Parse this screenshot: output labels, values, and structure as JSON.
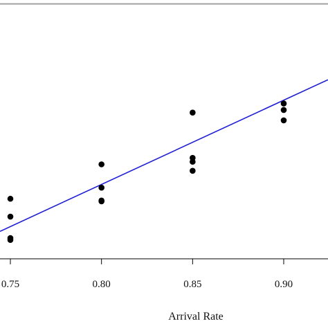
{
  "chart_data": {
    "type": "scatter",
    "title": "",
    "xlabel": "Arrival Rate",
    "ylabel": "",
    "xlim": [
      0.7443,
      0.9243
    ],
    "ylim": [
      0.0,
      1.0
    ],
    "xticks": [
      {
        "value": 0.75,
        "label": "0.75"
      },
      {
        "value": 0.8,
        "label": "0.80"
      },
      {
        "value": 0.85,
        "label": "0.85"
      },
      {
        "value": 0.9,
        "label": "0.90"
      }
    ],
    "grid": false,
    "points": {
      "x": [
        0.75,
        0.75,
        0.75,
        0.75,
        0.8,
        0.8,
        0.8,
        0.8,
        0.85,
        0.85,
        0.85,
        0.85,
        0.9,
        0.9,
        0.9
      ],
      "y": [
        0.232,
        0.163,
        0.08,
        0.073,
        0.365,
        0.275,
        0.225,
        0.222,
        0.565,
        0.39,
        0.375,
        0.34,
        0.6,
        0.575,
        0.535
      ],
      "color": "#000000"
    },
    "fit_line": {
      "x": [
        0.7443,
        0.9243
      ],
      "y": [
        0.106,
        0.692
      ],
      "color": "#1f1fd6"
    },
    "reference_line": {
      "y": 0.985,
      "color": "#a0a0a0"
    }
  }
}
